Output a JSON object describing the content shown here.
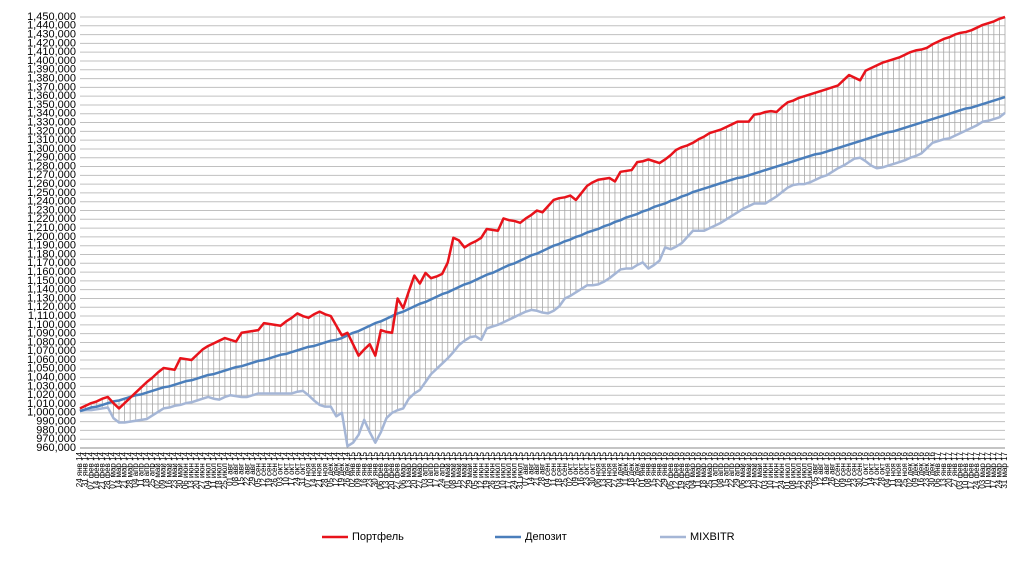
{
  "chart_data": {
    "type": "line",
    "categories": [
      "24 янв 14",
      "31 янв 14",
      "07 фев 14",
      "14 фев 14",
      "21 фев 14",
      "28 фев 14",
      "07 мар 14",
      "14 мар 14",
      "21 мар 14",
      "28 мар 14",
      "04 апр 14",
      "11 апр 14",
      "18 апр 14",
      "25 апр 14",
      "02 май 14",
      "09 май 14",
      "16 май 14",
      "23 май 14",
      "30 май 14",
      "06 июн 14",
      "13 июн 14",
      "20 июн 14",
      "27 июн 14",
      "04 июл 14",
      "11 июл 14",
      "18 июл 14",
      "25 июл 14",
      "01 авг 14",
      "08 авг 14",
      "15 авг 14",
      "22 авг 14",
      "29 авг 14",
      "05 сен 14",
      "12 сен 14",
      "19 сен 14",
      "26 сен 14",
      "03 окт 14",
      "10 окт 14",
      "17 окт 14",
      "24 окт 14",
      "31 окт 14",
      "07 ноя 14",
      "14 ноя 14",
      "21 ноя 14",
      "28 ноя 14",
      "05 дек 14",
      "12 дек 14",
      "19 дек 14",
      "26 дек 14",
      "02 янв 15",
      "09 янв 15",
      "16 янв 15",
      "23 янв 15",
      "30 янв 15",
      "06 фев 15",
      "13 фев 15",
      "20 фев 15",
      "27 фев 15",
      "06 мар 15",
      "13 мар 15",
      "20 мар 15",
      "27 мар 15",
      "03 апр 15",
      "10 апр 15",
      "17 апр 15",
      "24 апр 15",
      "01 май 15",
      "08 май 15",
      "15 май 15",
      "22 май 15",
      "29 май 15",
      "05 июн 15",
      "12 июн 15",
      "19 июн 15",
      "26 июн 15",
      "03 июл 15",
      "10 июл 15",
      "17 июл 15",
      "24 июл 15",
      "31 июл 15",
      "07 авг 15",
      "14 авг 15",
      "21 авг 15",
      "28 авг 15",
      "04 сен 15",
      "11 сен 15",
      "18 сен 15",
      "25 сен 15",
      "02 окт 15",
      "09 окт 15",
      "16 окт 15",
      "23 окт 15",
      "30 окт 15",
      "06 ноя 15",
      "13 ноя 15",
      "20 ноя 15",
      "27 ноя 15",
      "04 дек 15",
      "11 дек 15",
      "18 дек 15",
      "25 дек 15",
      "01 янв 16",
      "08 янв 16",
      "15 янв 16",
      "22 янв 16",
      "29 янв 16",
      "05 фев 16",
      "12 фев 16",
      "19 фев 16",
      "26 фев 16",
      "04 мар 16",
      "11 мар 16",
      "18 мар 16",
      "25 мар 16",
      "01 апр 16",
      "08 апр 16",
      "15 апр 16",
      "22 апр 16",
      "29 апр 16",
      "06 май 16",
      "13 май 16",
      "20 май 16",
      "27 май 16",
      "03 июн 16",
      "10 июн 16",
      "17 июн 16",
      "24 июн 16",
      "01 июл 16",
      "08 июл 16",
      "15 июл 16",
      "22 июл 16",
      "29 июл 16",
      "05 авг 16",
      "12 авг 16",
      "19 авг 16",
      "26 авг 16",
      "02 сен 16",
      "09 сен 16",
      "16 сен 16",
      "23 сен 16",
      "30 сен 16",
      "07 окт 16",
      "14 окт 16",
      "21 окт 16",
      "28 окт 16",
      "04 ноя 16",
      "11 ноя 16",
      "18 ноя 16",
      "25 ноя 16",
      "02 дек 16",
      "09 дек 16",
      "16 дек 16",
      "23 дек 16",
      "30 дек 16",
      "06 янв 17",
      "13 янв 17",
      "20 янв 17",
      "27 янв 17",
      "03 фев 17",
      "10 фев 17",
      "17 фев 17",
      "24 фев 17",
      "03 мар 17",
      "10 мар 17",
      "17 мар 17",
      "24 мар 17",
      "31 мар 17"
    ],
    "series": [
      {
        "name": "Портфель",
        "color": "#e8131b",
        "values": [
          1005000,
          1008000,
          1011000,
          1013000,
          1016000,
          1018000,
          1011000,
          1005000,
          1011000,
          1017000,
          1023000,
          1029000,
          1035000,
          1040000,
          1046000,
          1051000,
          1050000,
          1049000,
          1062000,
          1061000,
          1060000,
          1066000,
          1072000,
          1076000,
          1079000,
          1082000,
          1085000,
          1083000,
          1081000,
          1091000,
          1092000,
          1093000,
          1094000,
          1102000,
          1101000,
          1100000,
          1099000,
          1104000,
          1108000,
          1113000,
          1110000,
          1108000,
          1112000,
          1115000,
          1112000,
          1110000,
          1099000,
          1088000,
          1091000,
          1078000,
          1065000,
          1072000,
          1078000,
          1065000,
          1094000,
          1092000,
          1091000,
          1130000,
          1119000,
          1138000,
          1156000,
          1147000,
          1159000,
          1153000,
          1155000,
          1158000,
          1171000,
          1199000,
          1196000,
          1188000,
          1192000,
          1195000,
          1199000,
          1209000,
          1208000,
          1207000,
          1221000,
          1219000,
          1218000,
          1216000,
          1221000,
          1225000,
          1230000,
          1228000,
          1235000,
          1242000,
          1244000,
          1245000,
          1247000,
          1242000,
          1250000,
          1258000,
          1262000,
          1265000,
          1266000,
          1267000,
          1263000,
          1274000,
          1275000,
          1276000,
          1285000,
          1286000,
          1288000,
          1286000,
          1284000,
          1288000,
          1293000,
          1299000,
          1302000,
          1304000,
          1307000,
          1311000,
          1314000,
          1318000,
          1320000,
          1322000,
          1325000,
          1328000,
          1331000,
          1331000,
          1331000,
          1339000,
          1340000,
          1342000,
          1343000,
          1342000,
          1348000,
          1353000,
          1355000,
          1358000,
          1360000,
          1362000,
          1364000,
          1366000,
          1368000,
          1370000,
          1372000,
          1378000,
          1384000,
          1381000,
          1378000,
          1389000,
          1392000,
          1395000,
          1398000,
          1400000,
          1402000,
          1404000,
          1407000,
          1410000,
          1412000,
          1413000,
          1415000,
          1419000,
          1422000,
          1425000,
          1427000,
          1430000,
          1432000,
          1433000,
          1435000,
          1438000,
          1441000,
          1443000,
          1445000,
          1448000,
          1450000
        ]
      },
      {
        "name": "Депозит",
        "color": "#4a7ebb",
        "values": [
          1002000,
          1004000,
          1006000,
          1007000,
          1009000,
          1011000,
          1013000,
          1014000,
          1016000,
          1018000,
          1020000,
          1021000,
          1023000,
          1025000,
          1027000,
          1029000,
          1030000,
          1032000,
          1034000,
          1036000,
          1037000,
          1039000,
          1041000,
          1043000,
          1044000,
          1046000,
          1048000,
          1050000,
          1052000,
          1053000,
          1055000,
          1057000,
          1059000,
          1060000,
          1062000,
          1064000,
          1066000,
          1067000,
          1069000,
          1071000,
          1073000,
          1075000,
          1076000,
          1078000,
          1080000,
          1082000,
          1083000,
          1085000,
          1088000,
          1091000,
          1093000,
          1096000,
          1099000,
          1102000,
          1104000,
          1107000,
          1110000,
          1113000,
          1115000,
          1118000,
          1121000,
          1124000,
          1126000,
          1129000,
          1132000,
          1135000,
          1137000,
          1140000,
          1143000,
          1146000,
          1148000,
          1151000,
          1154000,
          1157000,
          1159000,
          1162000,
          1165000,
          1168000,
          1170000,
          1173000,
          1176000,
          1179000,
          1181000,
          1184000,
          1187000,
          1190000,
          1192000,
          1195000,
          1197000,
          1200000,
          1202000,
          1205000,
          1207000,
          1209000,
          1212000,
          1214000,
          1217000,
          1219000,
          1222000,
          1224000,
          1226000,
          1229000,
          1231000,
          1234000,
          1236000,
          1238000,
          1241000,
          1243000,
          1246000,
          1248000,
          1251000,
          1253000,
          1255000,
          1257000,
          1259000,
          1261000,
          1263000,
          1265000,
          1267000,
          1268000,
          1270000,
          1272000,
          1274000,
          1276000,
          1278000,
          1280000,
          1282000,
          1284000,
          1286000,
          1288000,
          1290000,
          1292000,
          1294000,
          1295000,
          1297000,
          1299000,
          1301000,
          1303000,
          1305000,
          1307000,
          1309000,
          1311000,
          1313000,
          1315000,
          1317000,
          1319000,
          1320000,
          1322000,
          1324000,
          1326000,
          1328000,
          1330000,
          1332000,
          1334000,
          1336000,
          1338000,
          1340000,
          1342000,
          1344000,
          1346000,
          1347000,
          1349000,
          1351000,
          1353000,
          1355000,
          1357000,
          1359000
        ]
      },
      {
        "name": "MIXBITR",
        "color": "#a5b6d6",
        "values": [
          1002000,
          1003000,
          1003000,
          1004000,
          1005000,
          1006000,
          994000,
          989000,
          989000,
          990000,
          991000,
          992000,
          993000,
          997000,
          1001000,
          1005000,
          1006000,
          1008000,
          1009000,
          1011000,
          1012000,
          1014000,
          1016000,
          1018000,
          1016000,
          1015000,
          1018000,
          1020000,
          1019000,
          1018000,
          1018000,
          1020000,
          1022000,
          1022000,
          1022000,
          1022000,
          1022000,
          1022000,
          1022000,
          1024000,
          1025000,
          1020000,
          1014000,
          1009000,
          1007000,
          1007000,
          996000,
          1000000,
          962000,
          966000,
          975000,
          992000,
          978000,
          966000,
          978000,
          994000,
          1000000,
          1003000,
          1005000,
          1016000,
          1022000,
          1026000,
          1035000,
          1044000,
          1050000,
          1056000,
          1062000,
          1069000,
          1077000,
          1082000,
          1086000,
          1087000,
          1083000,
          1096000,
          1098000,
          1100000,
          1103000,
          1106000,
          1109000,
          1112000,
          1115000,
          1117000,
          1116000,
          1114000,
          1113000,
          1116000,
          1121000,
          1130000,
          1133000,
          1137000,
          1141000,
          1145000,
          1145000,
          1146000,
          1149000,
          1153000,
          1158000,
          1163000,
          1164000,
          1164000,
          1168000,
          1171000,
          1164000,
          1168000,
          1173000,
          1188000,
          1186000,
          1189000,
          1193000,
          1200000,
          1207000,
          1207000,
          1207000,
          1210000,
          1213000,
          1216000,
          1220000,
          1224000,
          1228000,
          1232000,
          1235000,
          1238000,
          1238000,
          1238000,
          1242000,
          1246000,
          1251000,
          1256000,
          1259000,
          1260000,
          1260000,
          1262000,
          1265000,
          1268000,
          1270000,
          1274000,
          1278000,
          1281000,
          1285000,
          1289000,
          1290000,
          1286000,
          1281000,
          1278000,
          1279000,
          1281000,
          1283000,
          1285000,
          1287000,
          1290000,
          1292000,
          1295000,
          1301000,
          1307000,
          1309000,
          1311000,
          1312000,
          1315000,
          1318000,
          1321000,
          1324000,
          1327000,
          1331000,
          1332000,
          1334000,
          1336000,
          1341000
        ]
      }
    ],
    "ylim": [
      960000,
      1450000
    ],
    "yticks": [
      {
        "value": 960000,
        "label": "960,000"
      },
      {
        "value": 970000,
        "label": "970,000"
      },
      {
        "value": 980000,
        "label": "980,000"
      },
      {
        "value": 990000,
        "label": "990,000"
      },
      {
        "value": 1000000,
        "label": "1,000,000"
      },
      {
        "value": 1010000,
        "label": "1,010,000"
      },
      {
        "value": 1020000,
        "label": "1,020,000"
      },
      {
        "value": 1030000,
        "label": "1,030,000"
      },
      {
        "value": 1040000,
        "label": "1,040,000"
      },
      {
        "value": 1050000,
        "label": "1,050,000"
      },
      {
        "value": 1060000,
        "label": "1,060,000"
      },
      {
        "value": 1070000,
        "label": "1,070,000"
      },
      {
        "value": 1080000,
        "label": "1,080,000"
      },
      {
        "value": 1090000,
        "label": "1,090,000"
      },
      {
        "value": 1100000,
        "label": "1,100,000"
      },
      {
        "value": 1110000,
        "label": "1,110,000"
      },
      {
        "value": 1120000,
        "label": "1,120,000"
      },
      {
        "value": 1130000,
        "label": "1,130,000"
      },
      {
        "value": 1140000,
        "label": "1,140,000"
      },
      {
        "value": 1150000,
        "label": "1,150,000"
      },
      {
        "value": 1160000,
        "label": "1,160,000"
      },
      {
        "value": 1170000,
        "label": "1,170,000"
      },
      {
        "value": 1180000,
        "label": "1,180,000"
      },
      {
        "value": 1190000,
        "label": "1,190,000"
      },
      {
        "value": 1200000,
        "label": "1,200,000"
      },
      {
        "value": 1210000,
        "label": "1,210,000"
      },
      {
        "value": 1220000,
        "label": "1,220,000"
      },
      {
        "value": 1230000,
        "label": "1,230,000"
      },
      {
        "value": 1240000,
        "label": "1,240,000"
      },
      {
        "value": 1250000,
        "label": "1,250,000"
      },
      {
        "value": 1260000,
        "label": "1,260,000"
      },
      {
        "value": 1270000,
        "label": "1,270,000"
      },
      {
        "value": 1280000,
        "label": "1,280,000"
      },
      {
        "value": 1290000,
        "label": "1,290,000"
      },
      {
        "value": 1300000,
        "label": "1,300,000"
      },
      {
        "value": 1310000,
        "label": "1,310,000"
      },
      {
        "value": 1320000,
        "label": "1,320,000"
      },
      {
        "value": 1330000,
        "label": "1,330,000"
      },
      {
        "value": 1340000,
        "label": "1,340,000"
      },
      {
        "value": 1350000,
        "label": "1,350,000"
      },
      {
        "value": 1360000,
        "label": "1,360,000"
      },
      {
        "value": 1370000,
        "label": "1,370,000"
      },
      {
        "value": 1380000,
        "label": "1,380,000"
      },
      {
        "value": 1390000,
        "label": "1,390,000"
      },
      {
        "value": 1400000,
        "label": "1,400,000"
      },
      {
        "value": 1410000,
        "label": "1,410,000"
      },
      {
        "value": 1420000,
        "label": "1,420,000"
      },
      {
        "value": 1430000,
        "label": "1,430,000"
      },
      {
        "value": 1440000,
        "label": "1,440,000"
      },
      {
        "value": 1450000,
        "label": "1,450,000"
      }
    ],
    "grid": true,
    "high_low_lines": true,
    "legend": "bottom"
  }
}
